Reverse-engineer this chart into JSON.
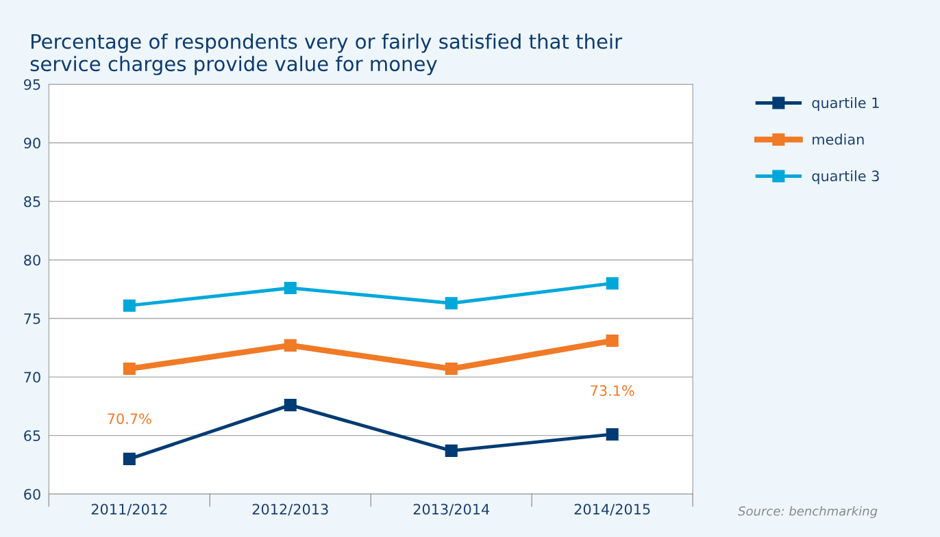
{
  "chart_data": {
    "type": "line",
    "title": "Percentage of respondents very or fairly satisfied that their\nservice charges provide value for money",
    "categories": [
      "2011/2012",
      "2012/2013",
      "2013/2014",
      "2014/2015"
    ],
    "series": [
      {
        "name": "quartile 1",
        "color": "#003b73",
        "values": [
          63.0,
          67.6,
          63.7,
          65.1
        ]
      },
      {
        "name": "median",
        "color": "#f07a26",
        "values": [
          70.7,
          72.7,
          70.7,
          73.1
        ]
      },
      {
        "name": "quartile 3",
        "color": "#00a8da",
        "values": [
          76.1,
          77.6,
          76.3,
          78.0
        ]
      }
    ],
    "ylim": [
      60,
      95
    ],
    "yticks": [
      60,
      65,
      70,
      75,
      80,
      85,
      90,
      95
    ],
    "grid": "y",
    "legend": "right",
    "marker": "square",
    "line_style": "solid",
    "annotations": [
      "70.7%",
      "73.1%",
      "Source: benchmarking"
    ]
  }
}
